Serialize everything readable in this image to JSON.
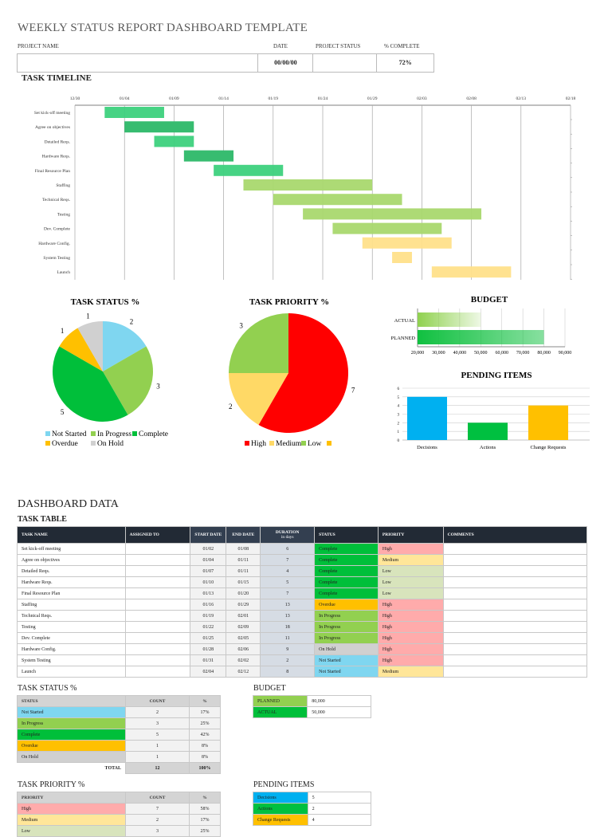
{
  "header": {
    "title": "WEEKLY STATUS REPORT DASHBOARD TEMPLATE",
    "project_name_label": "PROJECT NAME",
    "date_label": "DATE",
    "project_status_label": "PROJECT  STATUS",
    "complete_label": "% COMPLETE",
    "project_name": "",
    "date": "00/00/00",
    "project_status": "",
    "complete": "72%"
  },
  "colors": {
    "complete": "#00bf3a",
    "in_progress": "#92d050",
    "overdue": "#ffc000",
    "on_hold": "#d0d0d0",
    "not_started": "#7fd6f0",
    "high": "#ffabab",
    "medium": "#ffe699",
    "low": "#d8e4bc",
    "decisions": "#00b0f0",
    "actions": "#00c040",
    "change_requests": "#ffc000",
    "gantt_complete": "#3dd17d",
    "gantt_progress": "#a9d86e",
    "gantt_pending": "#ffe08a"
  },
  "timeline": {
    "title": "TASK TIMELINE",
    "ticks": [
      "12/30",
      "01/04",
      "01/09",
      "01/14",
      "01/19",
      "01/24",
      "01/29",
      "02/03",
      "02/08",
      "02/13",
      "02/18"
    ]
  },
  "chart_data": [
    {
      "type": "pie",
      "title": "TASK STATUS %",
      "categories": [
        "Not Started",
        "In Progress",
        "Complete",
        "Overdue",
        "On Hold"
      ],
      "values": [
        2,
        3,
        5,
        1,
        1
      ],
      "legend": "bottom"
    },
    {
      "type": "pie",
      "title": "TASK PRIORITY %",
      "categories": [
        "High",
        "Medium",
        "Low",
        ""
      ],
      "values": [
        7,
        2,
        3,
        0
      ],
      "legend": "bottom"
    },
    {
      "type": "bar",
      "orientation": "horizontal",
      "title": "BUDGET",
      "categories": [
        "ACTUAL",
        "PLANNED"
      ],
      "values": [
        50000,
        80000
      ],
      "xlim": [
        20000,
        90000
      ],
      "ticks": [
        "20,000",
        "30,000",
        "40,000",
        "50,000",
        "60,000",
        "70,000",
        "80,000",
        "90,000"
      ],
      "grid": true
    },
    {
      "type": "bar",
      "title": "PENDING ITEMS",
      "categories": [
        "Decisions",
        "Actions",
        "Change Requests"
      ],
      "values": [
        5,
        2,
        4
      ],
      "ylim": [
        0,
        6
      ],
      "ticks": [
        "0",
        "1",
        "2",
        "3",
        "4",
        "5",
        "6"
      ],
      "grid": true
    }
  ],
  "dashboard": {
    "title": "DASHBOARD DATA",
    "task_table_title": "TASK TABLE"
  },
  "task_table": {
    "columns": [
      "TASK NAME",
      "ASSIGNED TO",
      "START DATE",
      "END DATE",
      "DURATION",
      "STATUS",
      "PRIORITY",
      "COMMENTS"
    ],
    "duration_sub": "in days",
    "rows": [
      {
        "name": "Set kick-off meeting",
        "assigned": "",
        "start": "01/02",
        "end": "01/08",
        "duration": "6",
        "status": "Complete",
        "priority": "High",
        "comments": ""
      },
      {
        "name": "Agree on objectives",
        "assigned": "",
        "start": "01/04",
        "end": "01/11",
        "duration": "7",
        "status": "Complete",
        "priority": "Medium",
        "comments": ""
      },
      {
        "name": "Detailed Reqs.",
        "assigned": "",
        "start": "01/07",
        "end": "01/11",
        "duration": "4",
        "status": "Complete",
        "priority": "Low",
        "comments": ""
      },
      {
        "name": "Hardware Reqs.",
        "assigned": "",
        "start": "01/10",
        "end": "01/15",
        "duration": "5",
        "status": "Complete",
        "priority": "Low",
        "comments": ""
      },
      {
        "name": "Final Resource Plan",
        "assigned": "",
        "start": "01/13",
        "end": "01/20",
        "duration": "7",
        "status": "Complete",
        "priority": "Low",
        "comments": ""
      },
      {
        "name": "Staffing",
        "assigned": "",
        "start": "01/16",
        "end": "01/29",
        "duration": "13",
        "status": "Overdue",
        "priority": "High",
        "comments": ""
      },
      {
        "name": "Technical Reqs.",
        "assigned": "",
        "start": "01/19",
        "end": "02/01",
        "duration": "13",
        "status": "In Progress",
        "priority": "High",
        "comments": ""
      },
      {
        "name": "Testing",
        "assigned": "",
        "start": "01/22",
        "end": "02/09",
        "duration": "18",
        "status": "In Progress",
        "priority": "High",
        "comments": ""
      },
      {
        "name": "Dev. Complete",
        "assigned": "",
        "start": "01/25",
        "end": "02/05",
        "duration": "11",
        "status": "In Progress",
        "priority": "High",
        "comments": ""
      },
      {
        "name": "Hardware Config.",
        "assigned": "",
        "start": "01/28",
        "end": "02/06",
        "duration": "9",
        "status": "On Hold",
        "priority": "High",
        "comments": ""
      },
      {
        "name": "System Testing",
        "assigned": "",
        "start": "01/31",
        "end": "02/02",
        "duration": "2",
        "status": "Not Started",
        "priority": "High",
        "comments": ""
      },
      {
        "name": "Launch",
        "assigned": "",
        "start": "02/04",
        "end": "02/12",
        "duration": "8",
        "status": "Not Started",
        "priority": "Medium",
        "comments": ""
      }
    ]
  },
  "status_table": {
    "title": "TASK STATUS %",
    "columns": [
      "STATUS",
      "COUNT",
      "%"
    ],
    "rows": [
      [
        "Not Started",
        "2",
        "17%"
      ],
      [
        "In Progress",
        "3",
        "25%"
      ],
      [
        "Complete",
        "5",
        "42%"
      ],
      [
        "Overdue",
        "1",
        "8%"
      ],
      [
        "On Hold",
        "1",
        "8%"
      ]
    ],
    "total": [
      "TOTAL",
      "12",
      "100%"
    ]
  },
  "budget_table": {
    "title": "BUDGET",
    "rows": [
      [
        "PLANNED",
        "80,000"
      ],
      [
        "ACTUAL",
        "50,000"
      ]
    ]
  },
  "priority_table": {
    "title": "TASK PRIORITY %",
    "columns": [
      "PRIORITY",
      "COUNT",
      "%"
    ],
    "rows": [
      [
        "High",
        "7",
        "58%"
      ],
      [
        "Medium",
        "2",
        "17%"
      ],
      [
        "Low",
        "3",
        "25%"
      ]
    ]
  },
  "pending_table": {
    "title": "PENDING ITEMS",
    "rows": [
      [
        "Decisions",
        "5"
      ],
      [
        "Actions",
        "2"
      ],
      [
        "Change Requests",
        "4"
      ]
    ]
  }
}
